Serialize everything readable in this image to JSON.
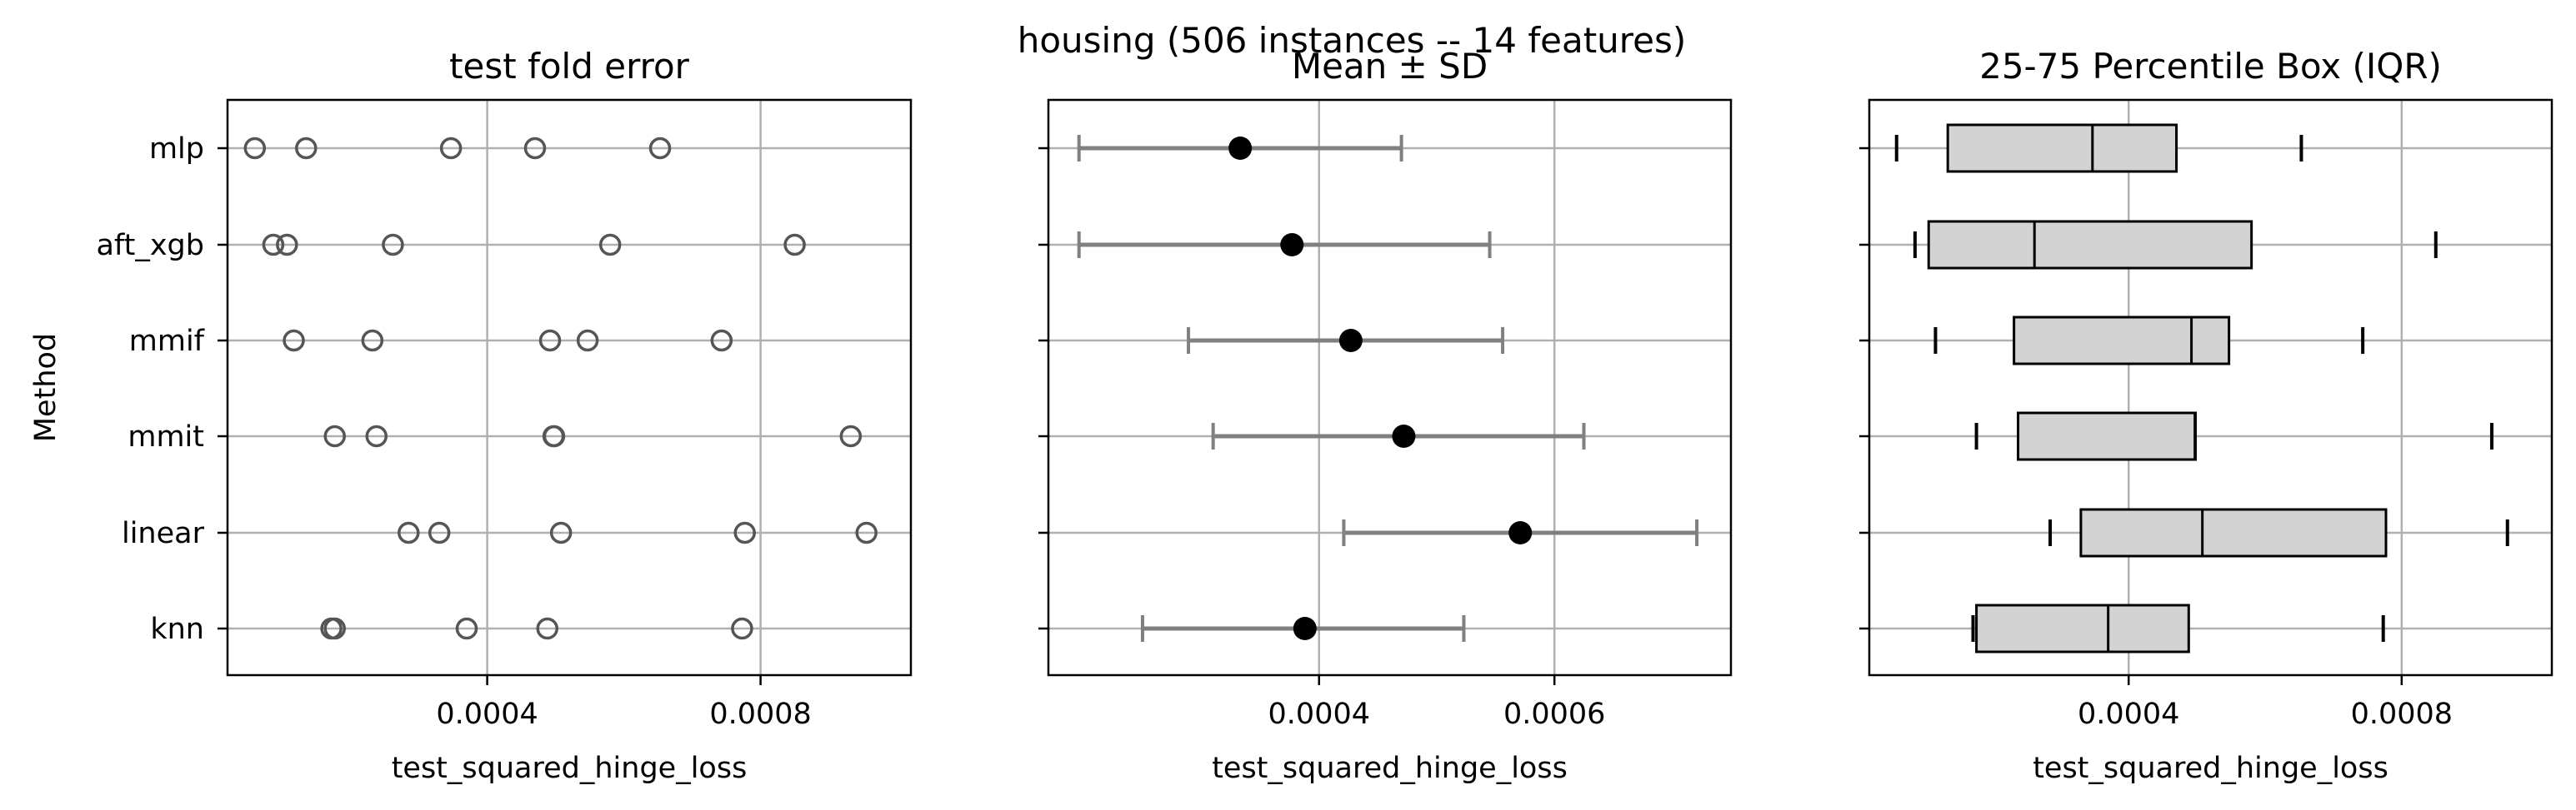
{
  "suptitle": "housing (506 instances -- 14 features)",
  "chart_data": [
    {
      "type": "scatter",
      "title": "test fold error",
      "xlabel": "test_squared_hinge_loss",
      "ylabel": "Method",
      "xlim": [
        2e-05,
        0.00102
      ],
      "xticks": [
        {
          "value": 0.0004,
          "label": "0.0004"
        },
        {
          "value": 0.0008,
          "label": "0.0008"
        }
      ],
      "categories": [
        "mlp",
        "aft_xgb",
        "mmif",
        "mmit",
        "linear",
        "knn"
      ],
      "grid": true,
      "marker": "open-circle",
      "points": {
        "mlp": [
          6e-05,
          0.000135,
          0.000347,
          0.00047,
          0.000653
        ],
        "aft_xgb": [
          8.7e-05,
          0.000107,
          0.000262,
          0.00058,
          0.00085
        ],
        "mmif": [
          0.000117,
          0.000232,
          0.000492,
          0.000547,
          0.000743
        ],
        "mmit": [
          0.000177,
          0.000238,
          0.000497,
          0.000498,
          0.000932
        ],
        "linear": [
          0.000285,
          0.00033,
          0.000508,
          0.000777,
          0.000955
        ],
        "knn": [
          0.000172,
          0.000177,
          0.00037,
          0.000488,
          0.000773
        ]
      }
    },
    {
      "type": "errorbar",
      "title": "Mean ± SD",
      "xlabel": "test_squared_hinge_loss",
      "xlim": [
        0.00017,
        0.00075
      ],
      "xticks": [
        {
          "value": 0.0004,
          "label": "0.0004"
        },
        {
          "value": 0.0006,
          "label": "0.0006"
        }
      ],
      "categories": [
        "mlp",
        "aft_xgb",
        "mmif",
        "mmit",
        "linear",
        "knn"
      ],
      "grid": true,
      "series": [
        {
          "category": "mlp",
          "mean": 0.000333,
          "low": 0.000196,
          "high": 0.00047
        },
        {
          "category": "aft_xgb",
          "mean": 0.000377,
          "low": 0.000196,
          "high": 0.000545
        },
        {
          "category": "mmif",
          "mean": 0.000427,
          "low": 0.000289,
          "high": 0.000556
        },
        {
          "category": "mmit",
          "mean": 0.000472,
          "low": 0.00031,
          "high": 0.000625
        },
        {
          "category": "linear",
          "mean": 0.000571,
          "low": 0.000421,
          "high": 0.000721
        },
        {
          "category": "knn",
          "mean": 0.000388,
          "low": 0.00025,
          "high": 0.000523
        }
      ]
    },
    {
      "type": "box",
      "title": "25-75 Percentile Box (IQR)",
      "xlabel": "test_squared_hinge_loss",
      "xlim": [
        2e-05,
        0.00102
      ],
      "xticks": [
        {
          "value": 0.0004,
          "label": "0.0004"
        },
        {
          "value": 0.0008,
          "label": "0.0008"
        }
      ],
      "categories": [
        "mlp",
        "aft_xgb",
        "mmif",
        "mmit",
        "linear",
        "knn"
      ],
      "grid": true,
      "boxes": [
        {
          "category": "mlp",
          "min": 6e-05,
          "q1": 0.000135,
          "median": 0.000347,
          "q3": 0.00047,
          "max": 0.000653
        },
        {
          "category": "aft_xgb",
          "min": 8.7e-05,
          "q1": 0.000107,
          "median": 0.000262,
          "q3": 0.00058,
          "max": 0.00085
        },
        {
          "category": "mmif",
          "min": 0.000117,
          "q1": 0.000232,
          "median": 0.000492,
          "q3": 0.000547,
          "max": 0.000743
        },
        {
          "category": "mmit",
          "min": 0.000177,
          "q1": 0.000238,
          "median": 0.000497,
          "q3": 0.000498,
          "max": 0.000932
        },
        {
          "category": "linear",
          "min": 0.000285,
          "q1": 0.00033,
          "median": 0.000508,
          "q3": 0.000777,
          "max": 0.000955
        },
        {
          "category": "knn",
          "min": 0.000172,
          "q1": 0.000177,
          "median": 0.00037,
          "q3": 0.000488,
          "max": 0.000773
        }
      ]
    }
  ],
  "colors": {
    "scatter_marker": "#555555",
    "errorbar_line": "#808080",
    "mean_point": "#000000",
    "box_fill": "#d3d3d3",
    "grid": "#b0b0b0"
  }
}
